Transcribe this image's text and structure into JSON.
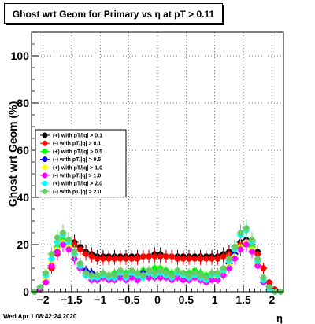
{
  "title": "Ghost wrt Geom for Primary vs   η at pT > 0.11",
  "timestamp": "Wed Apr  1 08:42:24 2020",
  "colors": {
    "black": "#000000",
    "red": "#ff0000",
    "green": "#00ff00",
    "blue": "#0000ff",
    "yellow": "#ffff00",
    "magenta": "#ff00ff",
    "cyan": "#00ffff",
    "lightgreen": "#66cc66"
  },
  "chart_data": {
    "type": "scatter",
    "xlabel": "η",
    "ylabel": "Ghost wrt Geom (%)",
    "xlim": [
      -2.2,
      2.2
    ],
    "ylim": [
      0,
      110
    ],
    "x_ticks": [
      -2,
      -1.5,
      -1,
      -0.5,
      0,
      0.5,
      1,
      1.5,
      2
    ],
    "x_tick_labels": [
      "−2",
      "−1.5",
      "−1",
      "−0.5",
      "0",
      "0.5",
      "1",
      "1.5",
      "2"
    ],
    "y_ticks": [
      0,
      20,
      40,
      60,
      80,
      100
    ],
    "y_tick_labels": [
      "0",
      "20",
      "40",
      "60",
      "80",
      "100"
    ],
    "grid": true,
    "legend_position": "middle-left",
    "x": [
      -2.15,
      -2.05,
      -1.95,
      -1.85,
      -1.75,
      -1.65,
      -1.55,
      -1.45,
      -1.35,
      -1.25,
      -1.15,
      -1.05,
      -0.95,
      -0.85,
      -0.75,
      -0.65,
      -0.55,
      -0.45,
      -0.35,
      -0.25,
      -0.15,
      -0.05,
      0.05,
      0.15,
      0.25,
      0.35,
      0.45,
      0.55,
      0.65,
      0.75,
      0.85,
      0.95,
      1.05,
      1.15,
      1.25,
      1.35,
      1.45,
      1.55,
      1.65,
      1.75,
      1.85,
      1.95,
      2.05,
      2.15
    ],
    "series": [
      {
        "name": "(+) with pT/|q| > 0.1",
        "color": "#000000",
        "values": [
          0,
          1,
          4,
          10,
          17,
          21,
          22,
          21,
          19,
          17,
          16,
          15,
          15,
          15,
          15,
          15,
          15,
          15,
          15,
          15,
          15,
          16,
          16,
          15,
          15,
          15,
          15,
          15,
          15,
          15,
          15,
          15,
          15,
          16,
          17,
          19,
          21,
          22,
          21,
          17,
          10,
          4,
          1,
          0
        ]
      },
      {
        "name": "(-) with pT/|q| > 0.1",
        "color": "#ff0000",
        "values": [
          0,
          1,
          4,
          10,
          16,
          20,
          21,
          20,
          18,
          16,
          15,
          14,
          14,
          14,
          14,
          14,
          14,
          14,
          14,
          15,
          15,
          15,
          15,
          15,
          15,
          14,
          14,
          14,
          14,
          14,
          14,
          14,
          14,
          15,
          16,
          18,
          20,
          21,
          20,
          16,
          10,
          4,
          1,
          0
        ]
      },
      {
        "name": "(+) with pT/|q| > 0.5",
        "color": "#00ff00",
        "values": [
          0,
          1,
          5,
          12,
          19,
          22,
          20,
          16,
          12,
          9,
          8,
          7,
          8,
          7,
          8,
          9,
          8,
          9,
          8,
          9,
          9,
          10,
          10,
          9,
          8,
          9,
          8,
          8,
          9,
          8,
          7,
          8,
          8,
          10,
          13,
          16,
          19,
          21,
          19,
          13,
          6,
          2,
          0,
          0
        ]
      },
      {
        "name": "(-) with pT/|q| > 0.5",
        "color": "#0000ff",
        "values": [
          0,
          1,
          5,
          11,
          18,
          21,
          19,
          16,
          12,
          9,
          8,
          7,
          7,
          6,
          7,
          8,
          7,
          8,
          7,
          8,
          8,
          8,
          8,
          8,
          7,
          8,
          7,
          7,
          8,
          7,
          6,
          7,
          7,
          9,
          12,
          16,
          19,
          20,
          18,
          12,
          6,
          2,
          0,
          0
        ]
      },
      {
        "name": "(+) with pT/|q| > 1.0",
        "color": "#ffff00",
        "values": [
          0,
          1,
          5,
          12,
          18,
          21,
          19,
          15,
          11,
          8,
          6,
          6,
          7,
          6,
          6,
          7,
          6,
          7,
          6,
          7,
          7,
          7,
          7,
          7,
          6,
          7,
          6,
          6,
          7,
          6,
          5,
          6,
          6,
          8,
          11,
          15,
          19,
          21,
          18,
          12,
          5,
          1,
          0,
          0
        ]
      },
      {
        "name": "(-) with pT/|q| > 1.0",
        "color": "#ff00ff",
        "values": [
          0,
          1,
          4,
          11,
          17,
          20,
          18,
          14,
          10,
          7,
          5,
          5,
          6,
          5,
          5,
          6,
          5,
          6,
          5,
          6,
          6,
          6,
          6,
          6,
          5,
          6,
          5,
          5,
          6,
          5,
          4,
          5,
          5,
          7,
          10,
          14,
          18,
          20,
          17,
          11,
          4,
          1,
          0,
          0
        ]
      },
      {
        "name": "(+) with pT/|q| > 2.0",
        "color": "#00ffff",
        "values": [
          0,
          2,
          7,
          14,
          21,
          24,
          21,
          16,
          11,
          7,
          6,
          6,
          7,
          6,
          6,
          8,
          6,
          8,
          7,
          6,
          8,
          7,
          8,
          7,
          6,
          8,
          7,
          6,
          7,
          6,
          5,
          7,
          7,
          9,
          13,
          18,
          24,
          26,
          21,
          13,
          5,
          1,
          0,
          0
        ]
      },
      {
        "name": "(-) with pT/|q| > 2.0",
        "color": "#66cc66",
        "values": [
          0,
          2,
          8,
          16,
          23,
          25,
          22,
          17,
          12,
          8,
          7,
          7,
          8,
          7,
          7,
          9,
          7,
          9,
          8,
          7,
          9,
          8,
          9,
          8,
          7,
          9,
          8,
          7,
          8,
          7,
          6,
          8,
          8,
          10,
          14,
          19,
          25,
          27,
          22,
          14,
          6,
          2,
          0,
          0
        ]
      }
    ]
  }
}
